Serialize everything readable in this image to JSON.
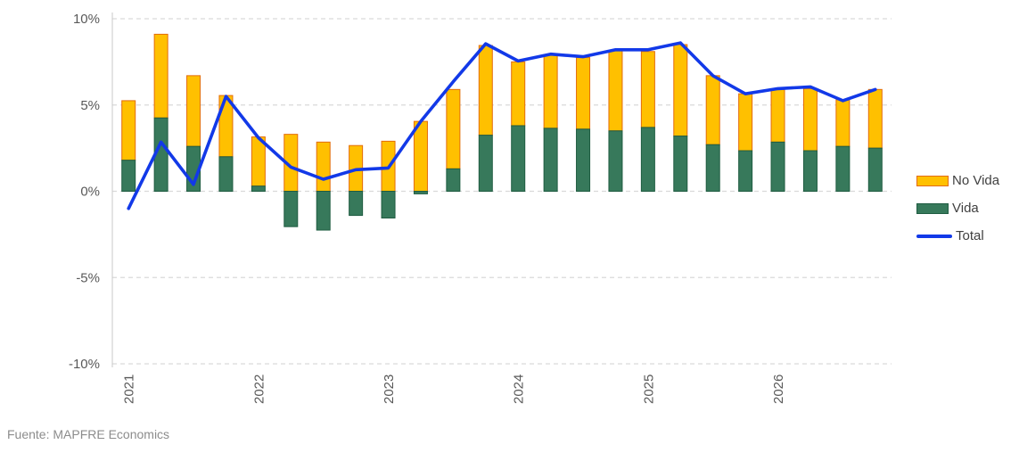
{
  "footer": {
    "source": "Fuente: MAPFRE Economics"
  },
  "colors": {
    "no_vida_fill": "#FFC000",
    "no_vida_border": "#E36C09",
    "vida_fill": "#37795B",
    "vida_border": "#1F5C41",
    "total_line": "#1239E8",
    "gridline": "#D9D9D9",
    "axis_line": "#C9C9C9",
    "axis_text": "#595959",
    "legend_text": "#404040",
    "source_text": "#8C8C8C"
  },
  "chart_data": {
    "type": "bar",
    "subtype": "stacked-bars-with-line-overlay",
    "title": "",
    "xlabel": "",
    "ylabel": "",
    "ylim": [
      -10,
      10
    ],
    "grid": "horizontal-dashed",
    "legend_position": "right",
    "x": [
      "2021-Q1",
      "2021-Q2",
      "2021-Q3",
      "2021-Q4",
      "2022-Q1",
      "2022-Q2",
      "2022-Q3",
      "2022-Q4",
      "2023-Q1",
      "2023-Q2",
      "2023-Q3",
      "2023-Q4",
      "2024-Q1",
      "2024-Q2",
      "2024-Q3",
      "2024-Q4",
      "2025-Q1",
      "2025-Q2",
      "2025-Q3",
      "2025-Q4",
      "2026-Q1",
      "2026-Q2",
      "2026-Q3",
      "2026-Q4"
    ],
    "year_labels": [
      "2021",
      "2022",
      "2023",
      "2024",
      "2025",
      "2026"
    ],
    "y_ticks": [
      {
        "v": 10,
        "label": "10%"
      },
      {
        "v": 5,
        "label": "5%"
      },
      {
        "v": 0,
        "label": "0%"
      },
      {
        "v": -5,
        "label": "-5%"
      },
      {
        "v": -10,
        "label": "-10%"
      }
    ],
    "series": [
      {
        "name": "No Vida",
        "type": "bar",
        "color": "#FFC000",
        "border": "#E36C09",
        "values": [
          3.45,
          4.85,
          4.1,
          3.55,
          2.85,
          3.3,
          2.85,
          2.65,
          2.9,
          4.05,
          4.6,
          5.2,
          3.7,
          4.25,
          4.15,
          4.65,
          4.4,
          5.3,
          4.0,
          3.3,
          3.05,
          3.6,
          2.7,
          3.4
        ]
      },
      {
        "name": "Vida",
        "type": "bar",
        "color": "#37795B",
        "border": "#1F5C41",
        "values": [
          1.8,
          4.25,
          2.6,
          2.0,
          0.3,
          -2.05,
          -2.25,
          -1.4,
          -1.55,
          -0.15,
          1.3,
          3.25,
          3.8,
          3.65,
          3.6,
          3.5,
          3.7,
          3.2,
          2.7,
          2.35,
          2.85,
          2.35,
          2.6,
          2.5
        ]
      },
      {
        "name": "Total",
        "type": "line",
        "color": "#1239E8",
        "values": [
          -1.0,
          2.85,
          0.4,
          5.5,
          3.1,
          1.4,
          0.7,
          1.25,
          1.35,
          4.05,
          6.35,
          8.55,
          7.55,
          7.95,
          7.8,
          8.2,
          8.2,
          8.6,
          6.7,
          5.65,
          5.95,
          6.05,
          5.25,
          5.9
        ]
      }
    ]
  }
}
